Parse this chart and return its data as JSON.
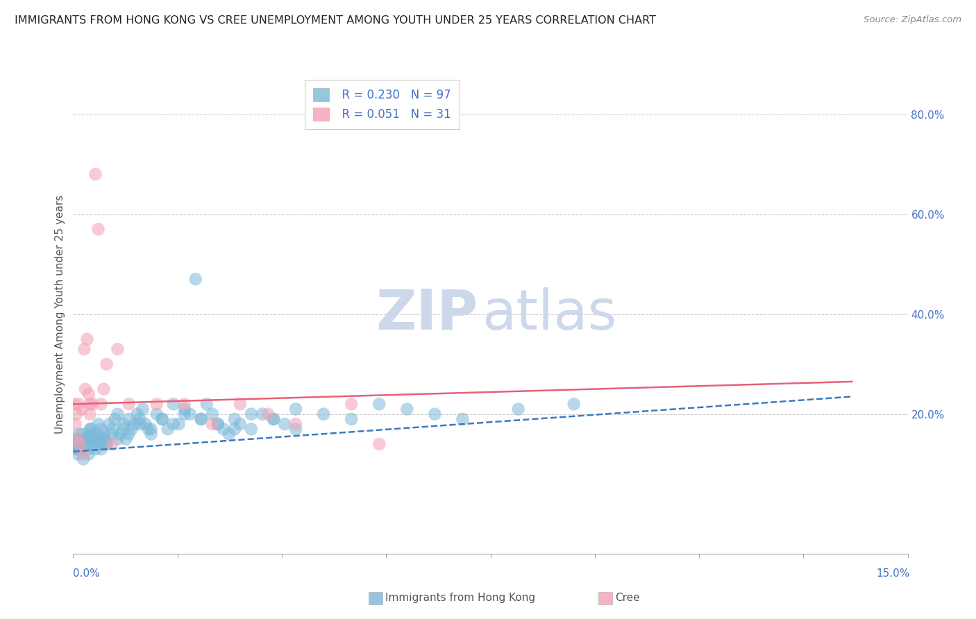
{
  "title": "IMMIGRANTS FROM HONG KONG VS CREE UNEMPLOYMENT AMONG YOUTH UNDER 25 YEARS CORRELATION CHART",
  "source": "Source: ZipAtlas.com",
  "ylabel": "Unemployment Among Youth under 25 years",
  "xlim": [
    0.0,
    15.0
  ],
  "ylim": [
    -8.0,
    88.0
  ],
  "hgrid_values": [
    20.0,
    40.0,
    60.0,
    80.0
  ],
  "legend_r1": "R = 0.230",
  "legend_n1": "N = 97",
  "legend_r2": "R = 0.051",
  "legend_n2": "N = 31",
  "blue_color": "#7ab8d9",
  "pink_color": "#f4a0b5",
  "blue_line_color": "#3a7abf",
  "pink_line_color": "#e8607a",
  "watermark_zip": "ZIP",
  "watermark_atlas": "atlas",
  "watermark_color": "#cdd8ea",
  "blue_trend_x0": 0.0,
  "blue_trend_x1": 14.0,
  "blue_trend_y0": 12.5,
  "blue_trend_y1": 23.5,
  "pink_trend_x0": 0.0,
  "pink_trend_x1": 14.0,
  "pink_trend_y0": 22.0,
  "pink_trend_y1": 26.5,
  "blue_pts_x": [
    0.02,
    0.04,
    0.06,
    0.08,
    0.1,
    0.12,
    0.15,
    0.18,
    0.2,
    0.22,
    0.25,
    0.28,
    0.3,
    0.32,
    0.35,
    0.38,
    0.4,
    0.42,
    0.45,
    0.48,
    0.5,
    0.52,
    0.55,
    0.58,
    0.6,
    0.65,
    0.7,
    0.75,
    0.8,
    0.85,
    0.9,
    0.95,
    1.0,
    1.05,
    1.1,
    1.15,
    1.2,
    1.25,
    1.3,
    1.35,
    1.4,
    1.5,
    1.6,
    1.7,
    1.8,
    1.9,
    2.0,
    2.1,
    2.2,
    2.3,
    2.4,
    2.5,
    2.6,
    2.7,
    2.8,
    2.9,
    3.0,
    3.2,
    3.4,
    3.6,
    3.8,
    4.0,
    0.05,
    0.1,
    0.15,
    0.2,
    0.25,
    0.3,
    0.35,
    0.4,
    0.45,
    0.5,
    0.55,
    0.6,
    0.7,
    0.8,
    0.9,
    1.0,
    1.2,
    1.4,
    1.6,
    1.8,
    2.0,
    2.3,
    2.6,
    2.9,
    3.2,
    3.6,
    4.0,
    4.5,
    5.0,
    5.5,
    6.0,
    6.5,
    7.0,
    8.0,
    9.0
  ],
  "blue_pts_y": [
    14,
    13,
    15,
    12,
    16,
    14,
    13,
    11,
    15,
    14,
    13,
    12,
    16,
    17,
    15,
    14,
    13,
    16,
    18,
    15,
    17,
    14,
    16,
    15,
    14,
    18,
    17,
    19,
    20,
    16,
    18,
    15,
    19,
    17,
    18,
    20,
    19,
    21,
    18,
    17,
    16,
    20,
    19,
    17,
    22,
    18,
    21,
    20,
    47,
    19,
    22,
    20,
    18,
    17,
    16,
    19,
    18,
    17,
    20,
    19,
    18,
    17,
    14,
    13,
    16,
    15,
    14,
    17,
    16,
    15,
    14,
    13,
    15,
    14,
    16,
    15,
    17,
    16,
    18,
    17,
    19,
    18,
    20,
    19,
    18,
    17,
    20,
    19,
    21,
    20,
    19,
    22,
    21,
    20,
    19,
    21,
    22
  ],
  "pink_pts_x": [
    0.02,
    0.04,
    0.06,
    0.08,
    0.1,
    0.12,
    0.15,
    0.18,
    0.2,
    0.22,
    0.25,
    0.28,
    0.3,
    0.35,
    0.4,
    0.45,
    0.5,
    0.55,
    0.6,
    0.7,
    0.8,
    1.0,
    1.5,
    2.0,
    2.5,
    3.0,
    3.5,
    4.0,
    5.0,
    0.3,
    5.5
  ],
  "pink_pts_y": [
    22,
    18,
    20,
    15,
    22,
    14,
    21,
    12,
    33,
    25,
    35,
    24,
    20,
    22,
    68,
    57,
    22,
    25,
    30,
    14,
    33,
    22,
    22,
    22,
    18,
    22,
    20,
    18,
    22,
    22,
    14
  ]
}
